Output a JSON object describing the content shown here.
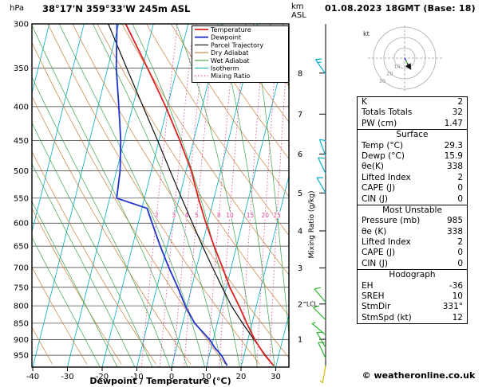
{
  "header": {
    "pressure_unit": "hPa",
    "station_title": "38°17'N 359°33'W 245m ASL",
    "altitude_unit": "km",
    "altitude_ref": "ASL",
    "datetime": "01.08.2023 18GMT (Base: 18)"
  },
  "chart_data": {
    "type": "skewt_log_p_sounding",
    "xlabel": "Dewpoint / Temperature (°C)",
    "x_ticks": [
      -40,
      -30,
      -20,
      -10,
      0,
      10,
      20,
      30
    ],
    "pressure_ticks": [
      300,
      350,
      400,
      450,
      500,
      550,
      600,
      650,
      700,
      750,
      800,
      850,
      900,
      950
    ],
    "axis": {
      "p_top": 300,
      "p_bottom": 990,
      "t_min": -40,
      "t_max": 40
    },
    "km_ticks": [
      1,
      2,
      3,
      4,
      5,
      6,
      7,
      8
    ],
    "lcl": {
      "label": "LCL",
      "km": 2
    },
    "mixing_ratio_axis_label": "Mixing Ratio (g/kg)",
    "mixing_ratio_lines_g_kg": [
      2,
      3,
      4,
      5,
      8,
      10,
      15,
      20,
      25
    ],
    "colors": {
      "temperature": "#dd2222",
      "dewpoint": "#2233cc",
      "parcel": "#111111",
      "dry_adiabat": "#c8803c",
      "wet_adiabat": "#3fa34d",
      "isotherm": "#00aebe",
      "mixing_ratio": "#e0409a",
      "grid": "#333333",
      "barb_upper": "#00b0c8",
      "barb_mid": "#2eb52e",
      "barb_surface": "#d0b800"
    },
    "legend": [
      {
        "label": "Temperature",
        "key": "temperature",
        "dotted": false
      },
      {
        "label": "Dewpoint",
        "key": "dewpoint",
        "dotted": false
      },
      {
        "label": "Parcel Trajectory",
        "key": "parcel",
        "dotted": false
      },
      {
        "label": "Dry Adiabat",
        "key": "dry_adiabat",
        "dotted": false
      },
      {
        "label": "Wet Adiabat",
        "key": "wet_adiabat",
        "dotted": false
      },
      {
        "label": "Isotherm",
        "key": "isotherm",
        "dotted": false
      },
      {
        "label": "Mixing Ratio",
        "key": "mixing_ratio",
        "dotted": true
      }
    ],
    "series": {
      "temperature_p_T": [
        [
          985,
          29.3
        ],
        [
          950,
          26.0
        ],
        [
          925,
          24.0
        ],
        [
          900,
          22.0
        ],
        [
          850,
          18.5
        ],
        [
          800,
          15.0
        ],
        [
          750,
          11.0
        ],
        [
          700,
          7.5
        ],
        [
          650,
          3.5
        ],
        [
          600,
          -0.5
        ],
        [
          550,
          -4.5
        ],
        [
          500,
          -8.5
        ],
        [
          450,
          -14.0
        ],
        [
          400,
          -20.5
        ],
        [
          350,
          -28.5
        ],
        [
          300,
          -38.0
        ]
      ],
      "dewpoint_p_Td": [
        [
          985,
          15.9
        ],
        [
          950,
          13.5
        ],
        [
          925,
          11.0
        ],
        [
          900,
          9.0
        ],
        [
          850,
          3.5
        ],
        [
          800,
          -0.5
        ],
        [
          750,
          -4.0
        ],
        [
          700,
          -8.0
        ],
        [
          650,
          -12.0
        ],
        [
          600,
          -16.0
        ],
        [
          570,
          -18.5
        ],
        [
          550,
          -28.0
        ],
        [
          500,
          -29.0
        ],
        [
          450,
          -31.0
        ],
        [
          400,
          -34.0
        ],
        [
          350,
          -37.5
        ],
        [
          300,
          -40.5
        ]
      ],
      "parcel_p_T": [
        [
          985,
          29.3
        ],
        [
          950,
          26.2
        ],
        [
          900,
          21.8
        ],
        [
          850,
          17.3
        ],
        [
          800,
          12.8
        ],
        [
          750,
          8.8
        ],
        [
          700,
          4.6
        ],
        [
          650,
          0.2
        ],
        [
          600,
          -4.4
        ],
        [
          550,
          -9.3
        ],
        [
          500,
          -14.6
        ],
        [
          450,
          -20.4
        ],
        [
          400,
          -27.0
        ],
        [
          350,
          -34.5
        ],
        [
          300,
          -43.0
        ]
      ]
    },
    "wind_barbs": [
      {
        "p": 357,
        "dir": 325,
        "spd": 15,
        "level": "upper"
      },
      {
        "p": 475,
        "dir": 340,
        "spd": 10,
        "level": "upper"
      },
      {
        "p": 505,
        "dir": 335,
        "spd": 10,
        "level": "upper"
      },
      {
        "p": 540,
        "dir": 330,
        "spd": 10,
        "level": "upper"
      },
      {
        "p": 790,
        "dir": 320,
        "spd": 10,
        "level": "mid"
      },
      {
        "p": 840,
        "dir": 315,
        "spd": 10,
        "level": "mid"
      },
      {
        "p": 885,
        "dir": 310,
        "spd": 5,
        "level": "mid"
      },
      {
        "p": 925,
        "dir": 330,
        "spd": 10,
        "level": "mid"
      },
      {
        "p": 960,
        "dir": 335,
        "spd": 10,
        "level": "mid"
      },
      {
        "p": 985,
        "dir": 190,
        "spd": 5,
        "level": "surface"
      }
    ]
  },
  "hodograph": {
    "unit_label": "kt",
    "rings_kt": [
      10,
      20,
      30
    ],
    "ring_labels": [
      "10",
      "20",
      "30"
    ],
    "trace_segments": [
      {
        "color": "#2233cc",
        "pts": [
          [
            0,
            0
          ],
          [
            1.5,
            -2.5
          ]
        ],
        "arrow": false
      },
      {
        "color": "#2eb52e",
        "pts": [
          [
            1.5,
            -2.5
          ],
          [
            2.5,
            -5
          ]
        ],
        "arrow": false
      },
      {
        "color": "#111111",
        "pts": [
          [
            2.5,
            -5
          ],
          [
            4,
            -7.5
          ],
          [
            5.8,
            -10.5
          ]
        ],
        "arrow": true
      }
    ]
  },
  "panel": {
    "indices": {
      "rows": [
        [
          "K",
          "2"
        ],
        [
          "Totals Totals",
          "32"
        ],
        [
          "PW (cm)",
          "1.47"
        ]
      ]
    },
    "surface": {
      "title": "Surface",
      "rows": [
        [
          "Temp (°C)",
          "29.3"
        ],
        [
          "Dewp (°C)",
          "15.9"
        ],
        [
          "θe(K)",
          "338"
        ],
        [
          "Lifted Index",
          "2"
        ],
        [
          "CAPE (J)",
          "0"
        ],
        [
          "CIN (J)",
          "0"
        ]
      ]
    },
    "most_unstable": {
      "title": "Most Unstable",
      "rows": [
        [
          "Pressure (mb)",
          "985"
        ],
        [
          "θe (K)",
          "338"
        ],
        [
          "Lifted Index",
          "2"
        ],
        [
          "CAPE (J)",
          "0"
        ],
        [
          "CIN (J)",
          "0"
        ]
      ]
    },
    "hodograph_stats": {
      "title": "Hodograph",
      "rows": [
        [
          "EH",
          "-36"
        ],
        [
          "SREH",
          "10"
        ],
        [
          "StmDir",
          "331°"
        ],
        [
          "StmSpd (kt)",
          "12"
        ]
      ]
    }
  },
  "footer": {
    "copyright": "© weatheronline.co.uk"
  }
}
